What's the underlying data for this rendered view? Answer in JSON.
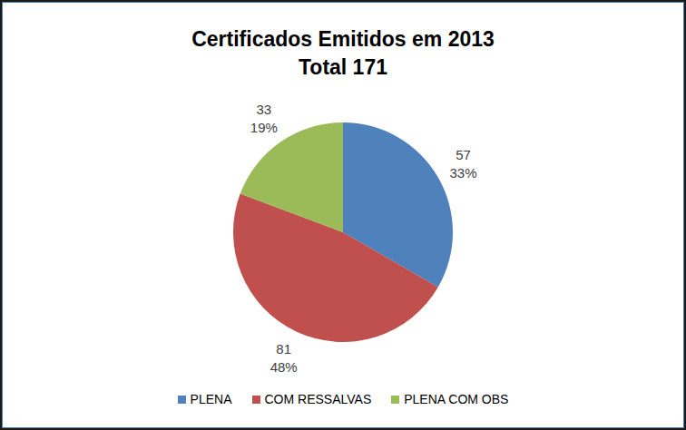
{
  "chart_data": {
    "type": "pie",
    "title": "Certificados Emitidos em 2013",
    "subtitle": "Total 171",
    "categories": [
      "PLENA",
      "COM RESSALVAS",
      "PLENA COM OBS"
    ],
    "values": [
      57,
      81,
      33
    ],
    "percentages": [
      33,
      48,
      19
    ],
    "percentage_labels": [
      "33%",
      "48%",
      "19%"
    ],
    "colors": [
      "#4f81bd",
      "#c0504d",
      "#9bbb59"
    ],
    "data_labels": true,
    "legend": "bottom"
  }
}
